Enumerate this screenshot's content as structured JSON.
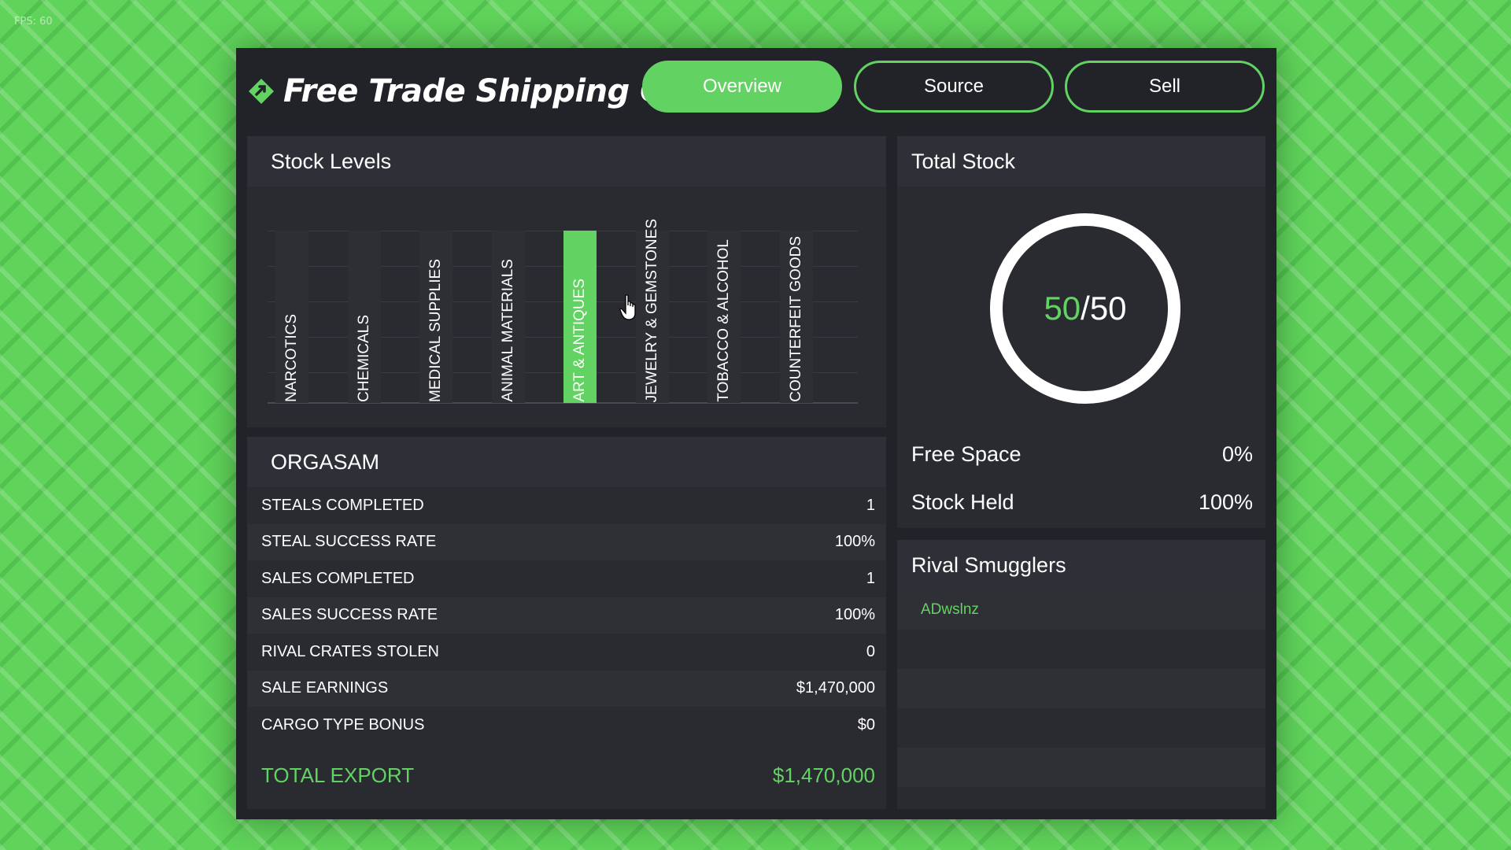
{
  "fps": "FPS: 60",
  "header": {
    "title": "Free Trade Shipping Co.",
    "tabs": [
      {
        "label": "Overview",
        "active": true
      },
      {
        "label": "Source",
        "active": false
      },
      {
        "label": "Sell",
        "active": false
      }
    ]
  },
  "stock_levels": {
    "title": "Stock Levels",
    "items": [
      {
        "label": "NARCOTICS",
        "level": 0
      },
      {
        "label": "CHEMICALS",
        "level": 0
      },
      {
        "label": "MEDICAL SUPPLIES",
        "level": 0
      },
      {
        "label": "ANIMAL MATERIALS",
        "level": 0
      },
      {
        "label": "ART & ANTIQUES",
        "level": 1.0
      },
      {
        "label": "JEWELRY & GEMSTONES",
        "level": 0
      },
      {
        "label": "TOBACCO & ALCOHOL",
        "level": 0
      },
      {
        "label": "COUNTERFEIT GOODS",
        "level": 0
      }
    ]
  },
  "org": {
    "name": "ORGASAM",
    "stats": [
      {
        "label": "STEALS COMPLETED",
        "value": "1"
      },
      {
        "label": "STEAL SUCCESS RATE",
        "value": "100%"
      },
      {
        "label": "SALES COMPLETED",
        "value": "1"
      },
      {
        "label": "SALES SUCCESS RATE",
        "value": "100%"
      },
      {
        "label": "RIVAL CRATES STOLEN",
        "value": "0"
      },
      {
        "label": "SALE EARNINGS",
        "value": "$1,470,000"
      },
      {
        "label": "CARGO TYPE BONUS",
        "value": "$0"
      }
    ],
    "total_label": "TOTAL EXPORT",
    "total_value": "$1,470,000"
  },
  "total_stock": {
    "title": "Total Stock",
    "current": "50",
    "max": "/50",
    "free_space_label": "Free Space",
    "free_space_value": "0%",
    "stock_held_label": "Stock Held",
    "stock_held_value": "100%"
  },
  "rivals": {
    "title": "Rival Smugglers",
    "names": [
      "ADwslnz"
    ]
  },
  "colors": {
    "accent": "#62d362",
    "panel": "#2a2b31",
    "window": "#222328"
  }
}
